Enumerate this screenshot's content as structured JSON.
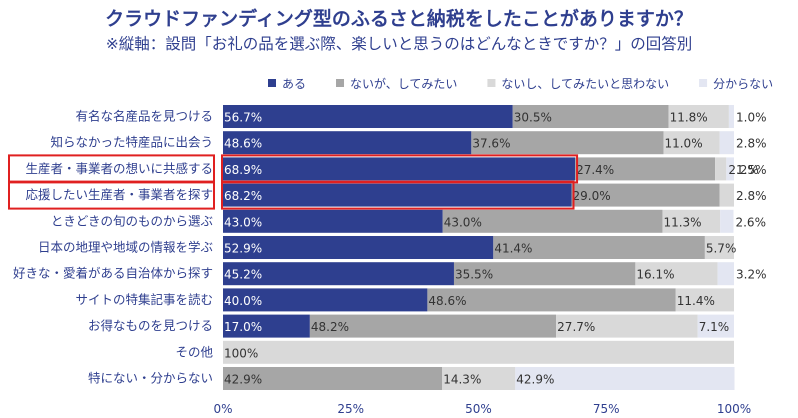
{
  "title": "クラウドファンディング型のふるさと納税をしたことがありますか？",
  "subtitle": "※縦軸：設問「お礼の品を選ぶ際、楽しいと思うのはどんなときですか？」の回答別",
  "chart_data": {
    "type": "bar",
    "orientation": "horizontal",
    "stacked": true,
    "xlim": [
      0,
      100
    ],
    "x_ticks": [
      "0%",
      "25%",
      "50%",
      "75%",
      "100%"
    ],
    "legend_position": "top-right",
    "categories": [
      "有名な名産品を見つける",
      "知らなかった特産品に出会う",
      "生産者・事業者の想いに共感する",
      "応援したい生産者・事業者を探す",
      "ときどきの旬のものから選ぶ",
      "日本の地理や地域の情報を学ぶ",
      "好きな・愛着がある自治体から探す",
      "サイトの特集記事を読む",
      "お得なものを見つける",
      "その他",
      "特にない・分からない"
    ],
    "highlighted_categories": [
      "生産者・事業者の想いに共感する",
      "応援したい生産者・事業者を探す"
    ],
    "series": [
      {
        "name": "ある",
        "color": "#2e3f8f",
        "values": [
          56.7,
          48.6,
          68.9,
          68.2,
          43.0,
          52.9,
          45.2,
          40.0,
          17.0,
          0,
          0
        ],
        "labels": [
          "56.7%",
          "48.6%",
          "68.9%",
          "68.2%",
          "43.0%",
          "52.9%",
          "45.2%",
          "40.0%",
          "17.0%",
          "",
          ""
        ]
      },
      {
        "name": "ないが、してみたい",
        "color": "#a6a6a6",
        "values": [
          30.5,
          37.6,
          27.4,
          29.0,
          43.0,
          41.4,
          35.5,
          48.6,
          48.2,
          0,
          42.9
        ],
        "labels": [
          "30.5%",
          "37.6%",
          "27.4%",
          "29.0%",
          "43.0%",
          "41.4%",
          "35.5%",
          "48.6%",
          "48.2%",
          "",
          "42.9%"
        ]
      },
      {
        "name": "ないし、してみたいと思わない",
        "color": "#d9d9d9",
        "values": [
          11.8,
          11.0,
          2.2,
          2.8,
          11.3,
          5.7,
          16.1,
          11.4,
          27.7,
          100,
          14.3
        ],
        "labels": [
          "11.8%",
          "11.0%",
          "2.2%",
          "2.8%",
          "11.3%",
          "5.7%",
          "16.1%",
          "11.4%",
          "27.7%",
          "100%",
          "14.3%"
        ]
      },
      {
        "name": "分からない",
        "color": "#e3e6f2",
        "values": [
          1.0,
          2.8,
          1.5,
          0,
          2.6,
          0,
          3.2,
          0,
          7.1,
          0,
          42.9
        ],
        "labels": [
          "1.0%",
          "2.8%",
          "1.5%",
          "",
          "2.6%",
          "",
          "3.2%",
          "",
          "7.1%",
          "",
          "42.9%"
        ]
      }
    ]
  }
}
